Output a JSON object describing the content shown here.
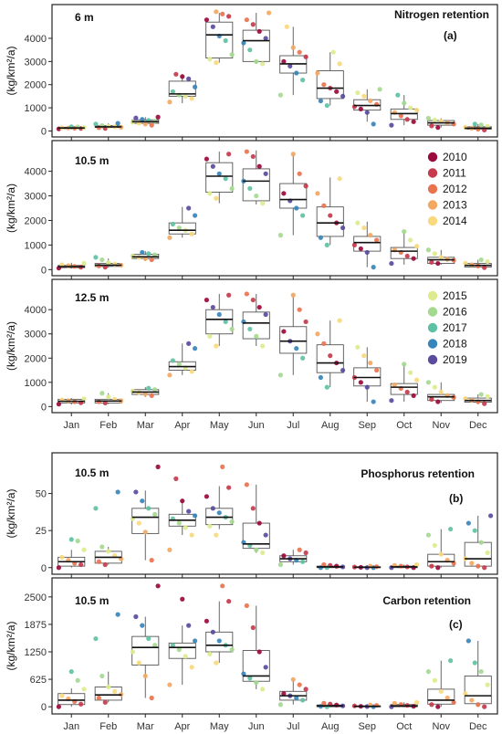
{
  "legend_colors": {
    "2010": "#9B0A3C",
    "2011": "#C53A4C",
    "2012": "#E8734F",
    "2013": "#F3A862",
    "2014": "#F8D97E",
    "2015": "#DDEB8E",
    "2016": "#A4D98F",
    "2017": "#5FC1A4",
    "2018": "#3785BB",
    "2019": "#5B4A9E"
  },
  "chart_data": [
    {
      "type": "box",
      "group": "a",
      "title": "6 m",
      "panel_title": "Nitrogen retention",
      "panel_label": "(a)",
      "ylabel": "(kg/km²/a)",
      "ylim": [
        -100,
        5300
      ],
      "yticks": [
        "0",
        "1000",
        "2000",
        "3000",
        "4000"
      ],
      "ytick_values": [
        0,
        1000,
        2000,
        3000,
        4000
      ],
      "categories": [
        "Jan",
        "Feb",
        "Mar",
        "Apr",
        "May",
        "Jun",
        "Jul",
        "Aug",
        "Sep",
        "Oct",
        "Nov",
        "Dec"
      ],
      "boxes": [
        {
          "q1": 100,
          "median": 130,
          "q3": 160,
          "whislo": 60,
          "whishi": 200
        },
        {
          "q1": 150,
          "median": 180,
          "q3": 230,
          "whislo": 100,
          "whishi": 330
        },
        {
          "q1": 330,
          "median": 400,
          "q3": 480,
          "whislo": 250,
          "whishi": 600
        },
        {
          "q1": 1500,
          "median": 1600,
          "q3": 2150,
          "whislo": 1200,
          "whishi": 2450
        },
        {
          "q1": 3150,
          "median": 4150,
          "q3": 4700,
          "whislo": 2950,
          "whishi": 5100
        },
        {
          "q1": 3000,
          "median": 3900,
          "q3": 4350,
          "whislo": 2900,
          "whishi": 5100
        },
        {
          "q1": 2500,
          "median": 2900,
          "q3": 3250,
          "whislo": 1550,
          "whishi": 4500
        },
        {
          "q1": 1400,
          "median": 1850,
          "q3": 2600,
          "whislo": 1100,
          "whishi": 3400
        },
        {
          "q1": 900,
          "median": 1100,
          "q3": 1350,
          "whislo": 400,
          "whishi": 1800
        },
        {
          "q1": 500,
          "median": 750,
          "q3": 950,
          "whislo": 250,
          "whishi": 1550
        },
        {
          "q1": 250,
          "median": 350,
          "q3": 450,
          "whislo": 150,
          "whishi": 550
        },
        {
          "q1": 80,
          "median": 120,
          "q3": 180,
          "whislo": 40,
          "whishi": 300
        }
      ],
      "points": [
        [
          90,
          110,
          120,
          130,
          140,
          150,
          170,
          180
        ],
        [
          110,
          140,
          160,
          180,
          200,
          230,
          300,
          330
        ],
        [
          250,
          300,
          340,
          380,
          420,
          460,
          500,
          560,
          600
        ],
        [
          1250,
          1400,
          1500,
          1550,
          1700,
          1900,
          2250,
          2350,
          2450
        ],
        [
          2950,
          3100,
          3300,
          3900,
          4100,
          4500,
          4800,
          4950,
          5050,
          5150
        ],
        [
          2900,
          3000,
          3500,
          3800,
          4000,
          4300,
          4600,
          4800,
          5100
        ],
        [
          1550,
          2200,
          2500,
          2800,
          3000,
          3200,
          3400,
          3600,
          4500
        ],
        [
          1100,
          1300,
          1500,
          1700,
          1850,
          2000,
          2500,
          2900,
          3400
        ],
        [
          300,
          800,
          950,
          1050,
          1150,
          1300,
          1500,
          1650,
          1800
        ],
        [
          250,
          400,
          500,
          650,
          800,
          900,
          1000,
          1200,
          1550
        ],
        [
          150,
          220,
          300,
          350,
          420,
          480,
          550
        ],
        [
          40,
          80,
          120,
          160,
          200,
          260,
          300
        ]
      ]
    },
    {
      "type": "box",
      "group": "a",
      "title": "10.5 m",
      "panel_title": "",
      "panel_label": "",
      "ylabel": "(kg/km²/a)",
      "ylim": [
        -100,
        5100
      ],
      "yticks": [
        "0",
        "1000",
        "2000",
        "3000",
        "4000"
      ],
      "ytick_values": [
        0,
        1000,
        2000,
        3000,
        4000
      ],
      "categories": [
        "Jan",
        "Feb",
        "Mar",
        "Apr",
        "May",
        "Jun",
        "Jul",
        "Aug",
        "Sep",
        "Oct",
        "Nov",
        "Dec"
      ],
      "boxes": [
        {
          "q1": 80,
          "median": 120,
          "q3": 170,
          "whislo": 40,
          "whishi": 280
        },
        {
          "q1": 130,
          "median": 180,
          "q3": 250,
          "whislo": 80,
          "whishi": 450
        },
        {
          "q1": 450,
          "median": 520,
          "q3": 620,
          "whislo": 350,
          "whishi": 750
        },
        {
          "q1": 1450,
          "median": 1600,
          "q3": 1900,
          "whislo": 1300,
          "whishi": 2550
        },
        {
          "q1": 3150,
          "median": 3800,
          "q3": 4350,
          "whislo": 2700,
          "whishi": 4800
        },
        {
          "q1": 2800,
          "median": 3600,
          "q3": 4100,
          "whislo": 2650,
          "whishi": 4850
        },
        {
          "q1": 2500,
          "median": 2850,
          "q3": 3500,
          "whislo": 1400,
          "whishi": 4700
        },
        {
          "q1": 1350,
          "median": 1900,
          "q3": 2550,
          "whislo": 1000,
          "whishi": 3750
        },
        {
          "q1": 750,
          "median": 1100,
          "q3": 1350,
          "whislo": 100,
          "whishi": 1950
        },
        {
          "q1": 450,
          "median": 750,
          "q3": 900,
          "whislo": 200,
          "whishi": 1550
        },
        {
          "q1": 250,
          "median": 400,
          "q3": 500,
          "whislo": 200,
          "whishi": 800
        },
        {
          "q1": 100,
          "median": 170,
          "q3": 250,
          "whislo": 50,
          "whishi": 400
        }
      ],
      "points": [
        [
          60,
          100,
          130,
          160,
          200,
          260
        ],
        [
          100,
          150,
          180,
          220,
          280,
          400,
          500
        ],
        [
          400,
          450,
          500,
          550,
          600,
          650,
          700
        ],
        [
          1300,
          1450,
          1600,
          1700,
          1850,
          2200,
          2500
        ],
        [
          2900,
          3100,
          3300,
          3700,
          3900,
          4200,
          4500,
          4700
        ],
        [
          2700,
          3000,
          3300,
          3600,
          3900,
          4200,
          4600,
          4800
        ],
        [
          1400,
          2200,
          2500,
          2800,
          3100,
          3400,
          3900,
          4700
        ],
        [
          1000,
          1300,
          1700,
          1900,
          2200,
          2600,
          3100,
          3700
        ],
        [
          100,
          700,
          850,
          1000,
          1200,
          1400,
          1700,
          1900
        ],
        [
          250,
          450,
          550,
          700,
          800,
          950,
          1200,
          1550
        ],
        [
          250,
          300,
          380,
          420,
          500,
          650,
          800
        ],
        [
          80,
          150,
          200,
          260,
          330,
          400
        ]
      ]
    },
    {
      "type": "box",
      "group": "a",
      "title": "12.5 m",
      "panel_title": "",
      "panel_label": "",
      "ylabel": "(kg/km²/a)",
      "ylim": [
        -100,
        5100
      ],
      "yticks": [
        "0",
        "1000",
        "2000",
        "3000",
        "4000"
      ],
      "ytick_values": [
        0,
        1000,
        2000,
        3000,
        4000
      ],
      "categories": [
        "Jan",
        "Feb",
        "Mar",
        "Apr",
        "May",
        "Jun",
        "Jul",
        "Aug",
        "Sep",
        "Oct",
        "Nov",
        "Dec"
      ],
      "boxes": [
        {
          "q1": 150,
          "median": 220,
          "q3": 300,
          "whislo": 80,
          "whishi": 350
        },
        {
          "q1": 150,
          "median": 230,
          "q3": 300,
          "whislo": 100,
          "whishi": 550
        },
        {
          "q1": 500,
          "median": 600,
          "q3": 700,
          "whislo": 400,
          "whishi": 800
        },
        {
          "q1": 1500,
          "median": 1650,
          "q3": 1850,
          "whislo": 1300,
          "whishi": 2600
        },
        {
          "q1": 3000,
          "median": 3600,
          "q3": 4000,
          "whislo": 2500,
          "whishi": 4650
        },
        {
          "q1": 2800,
          "median": 3450,
          "q3": 3900,
          "whislo": 2500,
          "whishi": 4650
        },
        {
          "q1": 2200,
          "median": 2700,
          "q3": 3300,
          "whislo": 1300,
          "whishi": 4600
        },
        {
          "q1": 1400,
          "median": 1800,
          "q3": 2550,
          "whislo": 800,
          "whishi": 3550
        },
        {
          "q1": 850,
          "median": 1200,
          "q3": 1600,
          "whislo": 200,
          "whishi": 2450
        },
        {
          "q1": 500,
          "median": 800,
          "q3": 950,
          "whislo": 200,
          "whishi": 1750
        },
        {
          "q1": 250,
          "median": 400,
          "q3": 500,
          "whislo": 150,
          "whishi": 1000
        },
        {
          "q1": 180,
          "median": 250,
          "q3": 350,
          "whislo": 100,
          "whishi": 500
        }
      ],
      "points": [
        [
          100,
          160,
          200,
          240,
          280,
          320
        ],
        [
          150,
          200,
          240,
          300,
          400,
          550
        ],
        [
          450,
          520,
          580,
          640,
          700,
          760
        ],
        [
          1300,
          1450,
          1600,
          1750,
          1900,
          2400,
          2600
        ],
        [
          2500,
          2900,
          3200,
          3500,
          3800,
          4100,
          4400,
          4600
        ],
        [
          2500,
          2900,
          3200,
          3500,
          3800,
          4100,
          4400,
          4650
        ],
        [
          1300,
          2000,
          2400,
          2700,
          3100,
          3500,
          4000,
          4600
        ],
        [
          800,
          1200,
          1500,
          1800,
          2100,
          2600,
          3000,
          3550
        ],
        [
          200,
          800,
          1000,
          1200,
          1500,
          1800,
          2100,
          2450
        ],
        [
          250,
          450,
          600,
          750,
          900,
          1100,
          1400,
          1750
        ],
        [
          200,
          300,
          380,
          450,
          600,
          800,
          1000
        ],
        [
          120,
          200,
          260,
          330,
          420,
          500
        ]
      ]
    },
    {
      "type": "box",
      "group": "b",
      "title": "10.5 m",
      "panel_title": "Phosphorus retention",
      "panel_label": "(b)",
      "ylabel": "(kg/km²/a)",
      "ylim": [
        -2,
        75
      ],
      "yticks": [
        "0",
        "25",
        "50"
      ],
      "ytick_values": [
        0,
        25,
        50
      ],
      "categories": [
        "Jan",
        "Feb",
        "Mar",
        "Apr",
        "May",
        "Jun",
        "Jul",
        "Aug",
        "Sep",
        "Oct",
        "Nov",
        "Dec"
      ],
      "boxes": [
        {
          "q1": 1,
          "median": 4,
          "q3": 7,
          "whislo": 0,
          "whishi": 12
        },
        {
          "q1": 3,
          "median": 7,
          "q3": 11,
          "whislo": 2,
          "whishi": 14
        },
        {
          "q1": 23,
          "median": 34,
          "q3": 40,
          "whislo": 5,
          "whishi": 52
        },
        {
          "q1": 28,
          "median": 32,
          "q3": 36,
          "whislo": 22,
          "whishi": 46
        },
        {
          "q1": 29,
          "median": 34,
          "q3": 40,
          "whislo": 26,
          "whishi": 55
        },
        {
          "q1": 13,
          "median": 16,
          "q3": 30,
          "whislo": 10,
          "whishi": 56
        },
        {
          "q1": 4,
          "median": 6,
          "q3": 8,
          "whislo": 2,
          "whishi": 12
        },
        {
          "q1": 0,
          "median": 0.5,
          "q3": 1,
          "whislo": 0,
          "whishi": 2
        },
        {
          "q1": 0,
          "median": 0.3,
          "q3": 0.6,
          "whislo": 0,
          "whishi": 1
        },
        {
          "q1": 0,
          "median": 0.5,
          "q3": 1,
          "whislo": 0,
          "whishi": 2
        },
        {
          "q1": 1,
          "median": 4,
          "q3": 9,
          "whislo": 0,
          "whishi": 26
        },
        {
          "q1": 1,
          "median": 6,
          "q3": 17,
          "whislo": 0,
          "whishi": 35
        }
      ],
      "points": [
        [
          0,
          2,
          3,
          5,
          7,
          12,
          18,
          19
        ],
        [
          2,
          4,
          6,
          8,
          11,
          14,
          40,
          51
        ],
        [
          5,
          24,
          30,
          33,
          36,
          40,
          45,
          51,
          68
        ],
        [
          12,
          22,
          27,
          30,
          33,
          35,
          38,
          45,
          60
        ],
        [
          22,
          28,
          31,
          34,
          37,
          40,
          48,
          54,
          68
        ],
        [
          10,
          12,
          15,
          17,
          22,
          30,
          40,
          56
        ],
        [
          2,
          4,
          5,
          6,
          8,
          10,
          12
        ],
        [
          0,
          0,
          0.5,
          1,
          1.5,
          2
        ],
        [
          0,
          0,
          0.2,
          0.4,
          0.6,
          1
        ],
        [
          0,
          0,
          0.5,
          1,
          1.5,
          2
        ],
        [
          0,
          1,
          3,
          5,
          9,
          15,
          22,
          26
        ],
        [
          0,
          1,
          3,
          6,
          10,
          17,
          25,
          30,
          35
        ]
      ]
    },
    {
      "type": "box",
      "group": "c",
      "title": "10.5 m",
      "panel_title": "Carbon retention",
      "panel_label": "(c)",
      "ylabel": "(kg/km²/a)",
      "ylim": [
        -80,
        2850
      ],
      "yticks": [
        "0",
        "625",
        "1250",
        "1875",
        "2500"
      ],
      "ytick_values": [
        0,
        625,
        1250,
        1875,
        2500
      ],
      "categories": [
        "Jan",
        "Feb",
        "Mar",
        "Apr",
        "May",
        "Jun",
        "Jul",
        "Aug",
        "Sep",
        "Oct",
        "Nov",
        "Dec"
      ],
      "boxes": [
        {
          "q1": 50,
          "median": 150,
          "q3": 300,
          "whislo": 0,
          "whishi": 420
        },
        {
          "q1": 150,
          "median": 270,
          "q3": 450,
          "whislo": 100,
          "whishi": 800
        },
        {
          "q1": 950,
          "median": 1350,
          "q3": 1600,
          "whislo": 200,
          "whishi": 2050
        },
        {
          "q1": 1100,
          "median": 1350,
          "q3": 1450,
          "whislo": 500,
          "whishi": 1850
        },
        {
          "q1": 1250,
          "median": 1400,
          "q3": 1700,
          "whislo": 1000,
          "whishi": 2400
        },
        {
          "q1": 580,
          "median": 700,
          "q3": 1280,
          "whislo": 400,
          "whishi": 2300
        },
        {
          "q1": 150,
          "median": 250,
          "q3": 350,
          "whislo": 50,
          "whishi": 620
        },
        {
          "q1": 0,
          "median": 20,
          "q3": 40,
          "whislo": 0,
          "whishi": 80
        },
        {
          "q1": 0,
          "median": 10,
          "q3": 20,
          "whislo": 0,
          "whishi": 40
        },
        {
          "q1": 0,
          "median": 20,
          "q3": 50,
          "whislo": 0,
          "whishi": 100
        },
        {
          "q1": 60,
          "median": 150,
          "q3": 400,
          "whislo": 0,
          "whishi": 1050
        },
        {
          "q1": 70,
          "median": 250,
          "q3": 700,
          "whislo": 0,
          "whishi": 1500
        }
      ],
      "points": [
        [
          0,
          60,
          120,
          180,
          250,
          400,
          600,
          800
        ],
        [
          100,
          200,
          280,
          350,
          450,
          700,
          1550,
          2100
        ],
        [
          200,
          700,
          1000,
          1250,
          1400,
          1550,
          1850,
          2050,
          2750
        ],
        [
          500,
          900,
          1150,
          1300,
          1400,
          1500,
          1850,
          2450
        ],
        [
          1000,
          1200,
          1300,
          1400,
          1500,
          1700,
          1950,
          2400,
          2750
        ],
        [
          400,
          550,
          650,
          750,
          900,
          1250,
          1800,
          2300
        ],
        [
          50,
          150,
          200,
          250,
          300,
          400,
          500,
          620
        ],
        [
          0,
          10,
          20,
          40,
          60,
          80
        ],
        [
          0,
          5,
          10,
          20,
          30,
          40
        ],
        [
          0,
          10,
          30,
          50,
          80,
          100
        ],
        [
          0,
          50,
          100,
          200,
          350,
          600,
          800,
          1050
        ],
        [
          0,
          50,
          150,
          300,
          500,
          800,
          1000,
          1500
        ]
      ]
    }
  ]
}
